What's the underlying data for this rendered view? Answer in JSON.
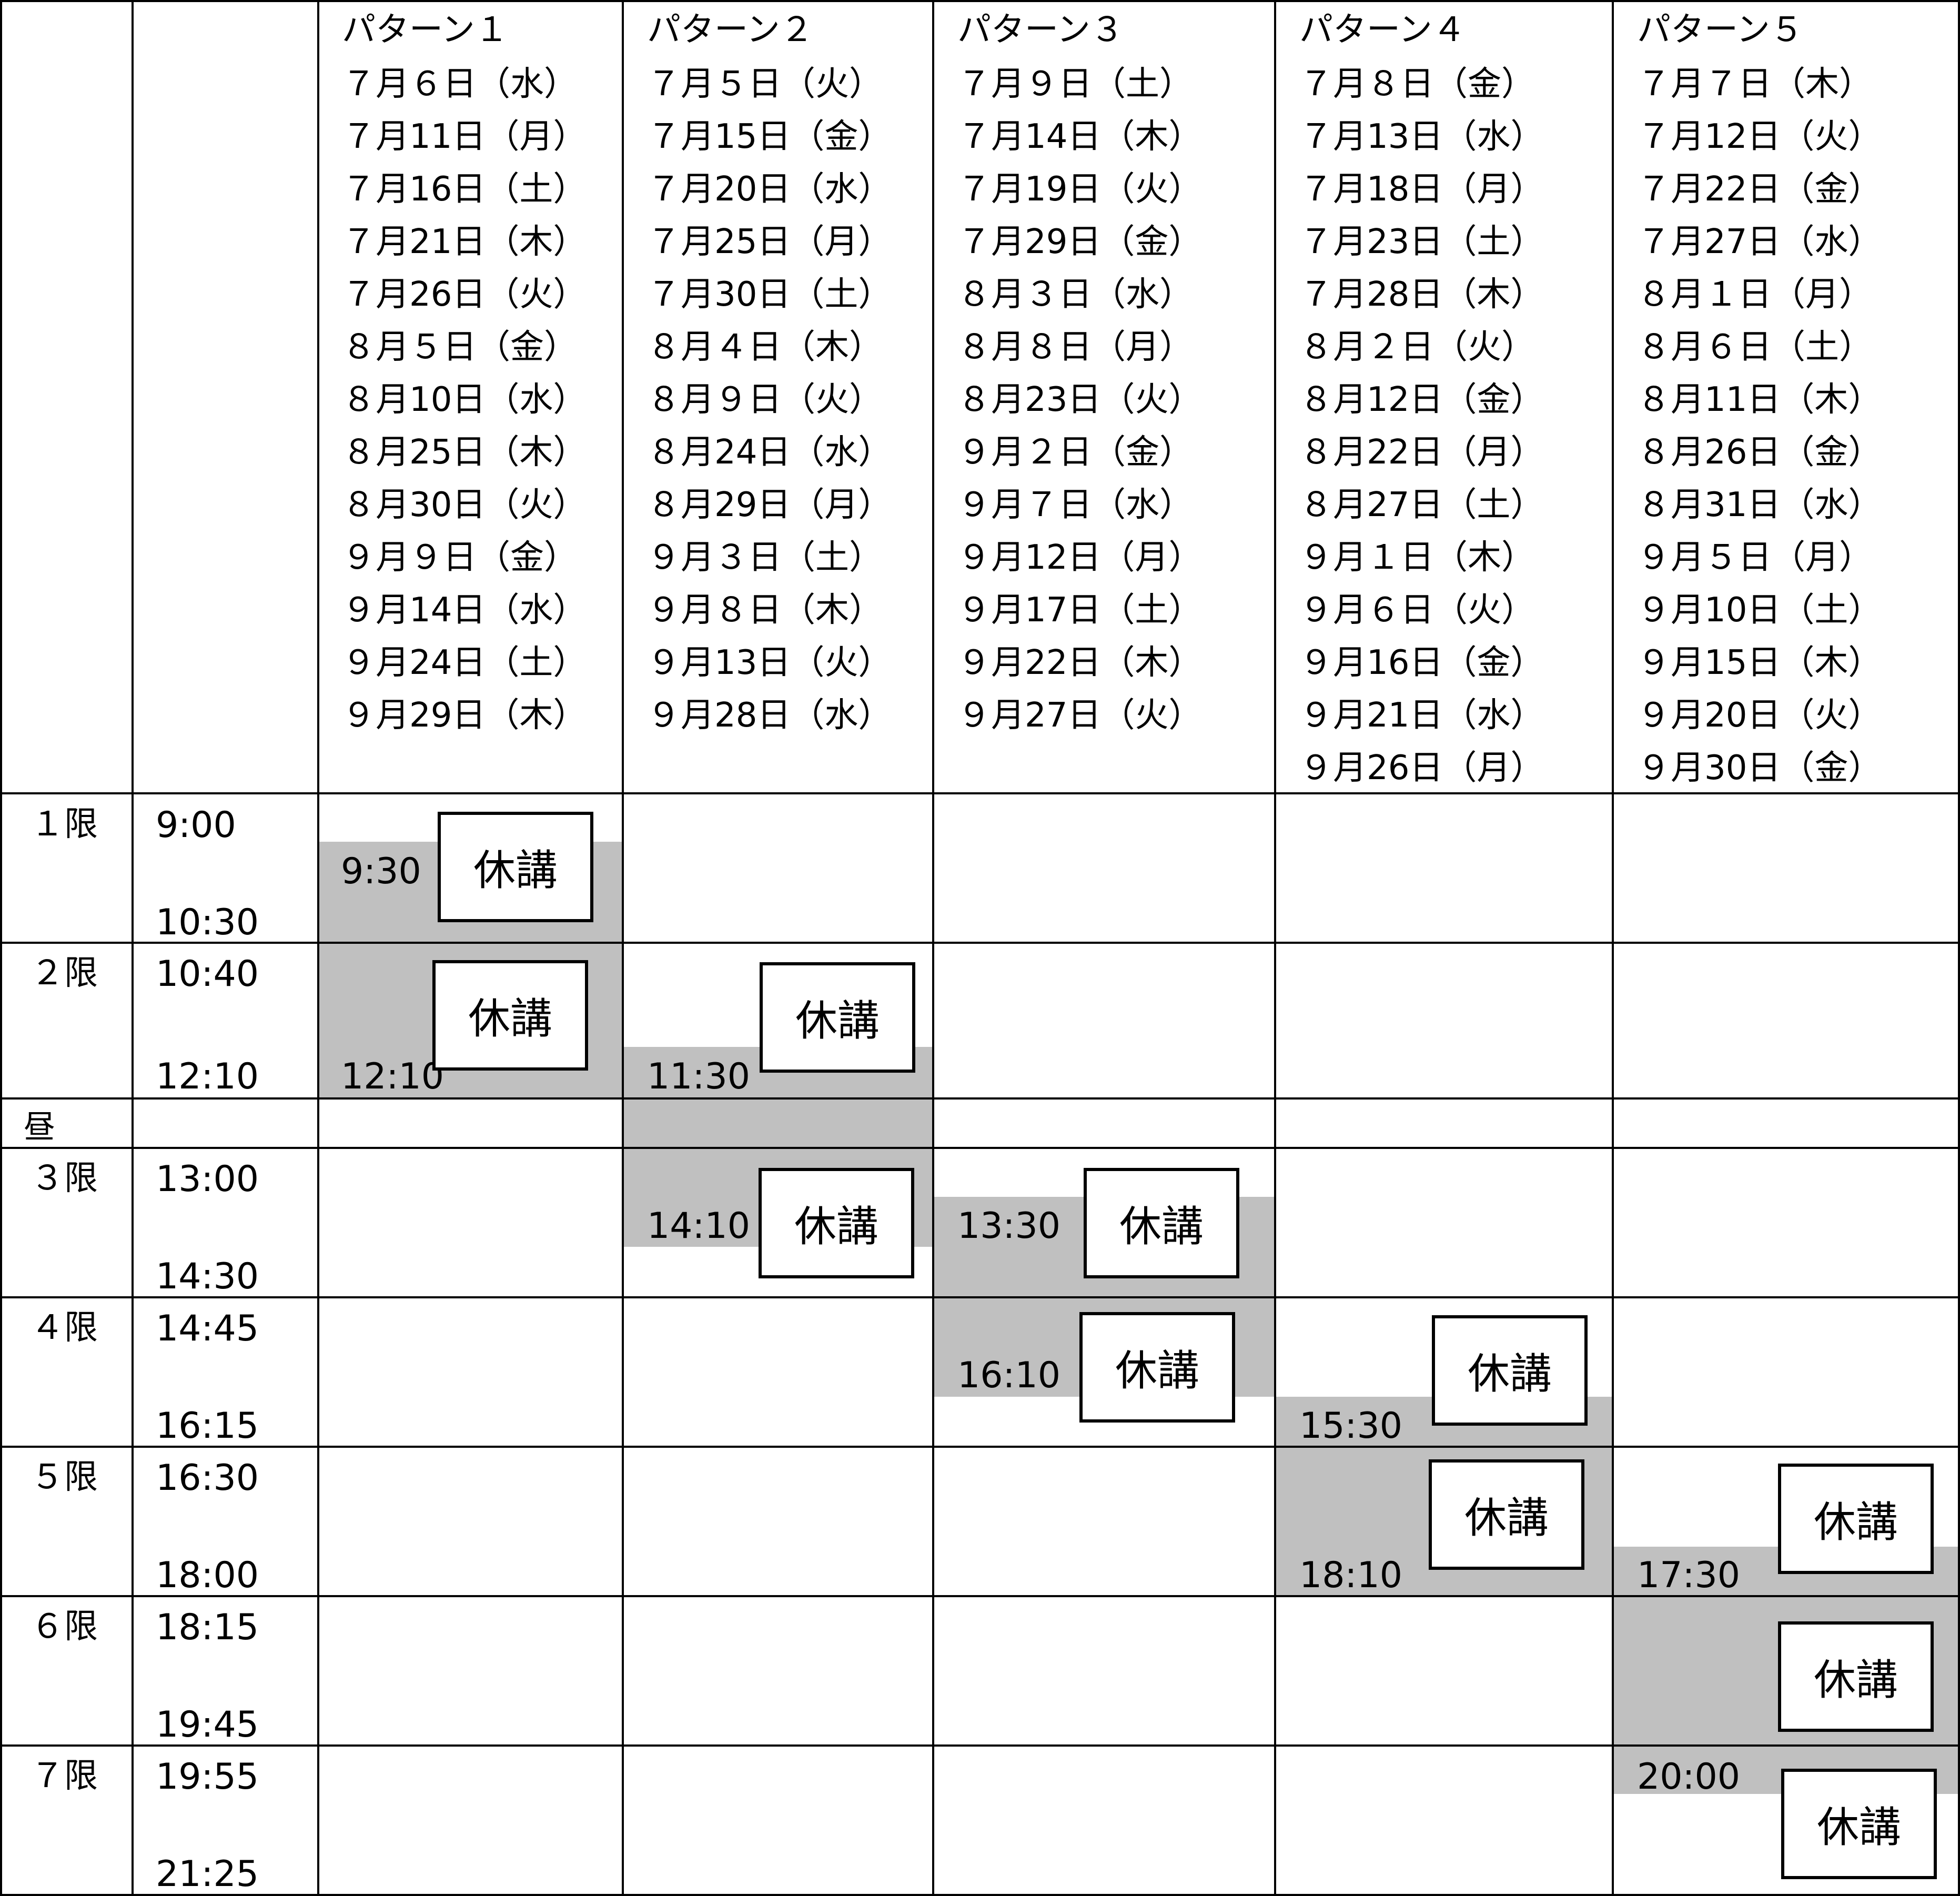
{
  "patterns": [
    {
      "title": "パターン１",
      "dates": [
        "７月６日（水）",
        "７月11日（月）",
        "７月16日（土）",
        "７月21日（木）",
        "７月26日（火）",
        "８月５日（金）",
        "８月10日（水）",
        "８月25日（木）",
        "８月30日（火）",
        "９月９日（金）",
        "９月14日（水）",
        "９月24日（土）",
        "９月29日（木）"
      ]
    },
    {
      "title": "パターン２",
      "dates": [
        "７月５日（火）",
        "７月15日（金）",
        "７月20日（水）",
        "７月25日（月）",
        "７月30日（土）",
        "８月４日（木）",
        "８月９日（火）",
        "８月24日（水）",
        "８月29日（月）",
        "９月３日（土）",
        "９月８日（木）",
        "９月13日（火）",
        "９月28日（水）"
      ]
    },
    {
      "title": "パターン３",
      "dates": [
        "７月９日（土）",
        "７月14日（木）",
        "７月19日（火）",
        "７月29日（金）",
        "８月３日（水）",
        "８月８日（月）",
        "８月23日（火）",
        "９月２日（金）",
        "９月７日（水）",
        "９月12日（月）",
        "９月17日（土）",
        "９月22日（木）",
        "９月27日（火）"
      ]
    },
    {
      "title": "パターン４",
      "dates": [
        "７月８日（金）",
        "７月13日（水）",
        "７月18日（月）",
        "７月23日（土）",
        "７月28日（木）",
        "８月２日（火）",
        "８月12日（金）",
        "８月22日（月）",
        "８月27日（土）",
        "９月１日（木）",
        "９月６日（火）",
        "９月16日（金）",
        "９月21日（水）",
        "９月26日（月）"
      ]
    },
    {
      "title": "パターン５",
      "dates": [
        "７月７日（木）",
        "７月12日（火）",
        "７月22日（金）",
        "７月27日（水）",
        "８月１日（月）",
        "８月６日（土）",
        "８月11日（木）",
        "８月26日（金）",
        "８月31日（水）",
        "９月５日（月）",
        "９月10日（土）",
        "９月15日（木）",
        "９月20日（火）",
        "９月30日（金）"
      ]
    }
  ],
  "periods": [
    {
      "label": "１限",
      "start": "9:00",
      "end": "10:30"
    },
    {
      "label": "２限",
      "start": "10:40",
      "end": "12:10"
    },
    {
      "label": "昼",
      "start": "",
      "end": ""
    },
    {
      "label": "３限",
      "start": "13:00",
      "end": "14:30"
    },
    {
      "label": "４限",
      "start": "14:45",
      "end": "16:15"
    },
    {
      "label": "５限",
      "start": "16:30",
      "end": "18:00"
    },
    {
      "label": "６限",
      "start": "18:15",
      "end": "19:45"
    },
    {
      "label": "７限",
      "start": "19:55",
      "end": "21:25"
    }
  ],
  "cancellations": [
    {
      "pattern": "パターン１",
      "from": "9:30",
      "to": "12:10"
    },
    {
      "pattern": "パターン２",
      "from": "11:30",
      "to": "14:10"
    },
    {
      "pattern": "パターン３",
      "from": "13:30",
      "to": "16:10"
    },
    {
      "pattern": "パターン４",
      "from": "15:30",
      "to": "18:10"
    },
    {
      "pattern": "パターン５",
      "from": "17:30",
      "to": "20:00"
    }
  ],
  "cancel_label": "休講",
  "colors": {
    "shade": "#c0c0c0",
    "grid": "#000000",
    "background": "#ffffff"
  }
}
